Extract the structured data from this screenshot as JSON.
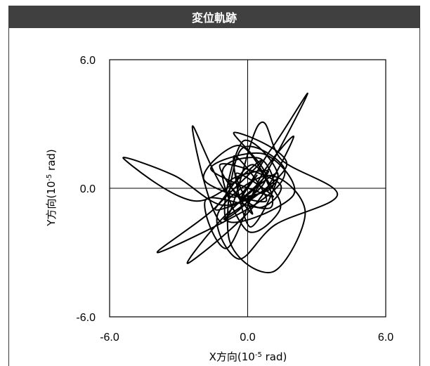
{
  "title": "変位軌跡",
  "chart_data": {
    "type": "line",
    "title": "変位軌跡",
    "xlabel": {
      "main": "X方向(10",
      "sup": "-5",
      "rest": " rad)"
    },
    "ylabel": {
      "main": "Y方向(10",
      "sup": "-5",
      "rest": " rad)"
    },
    "xlim": [
      -6.0,
      6.0
    ],
    "ylim": [
      -6.0,
      6.0
    ],
    "x_ticks": [
      "-6.0",
      "0.0",
      "6.0"
    ],
    "y_ticks": [
      "6.0",
      "0.0",
      "-6.0"
    ],
    "grid": false,
    "zero_lines": true,
    "line_color": "#000000",
    "series": [
      {
        "x": [
          0.0,
          0.4,
          -0.3,
          0.9,
          -0.8,
          0.5,
          1.4,
          -1.2,
          0.2,
          -0.5,
          1.1,
          -1.6,
          0.7,
          2.0,
          -0.9,
          -0.2,
          1.3,
          -1.4,
          0.6,
          -2.2,
          -5.4,
          -3.2,
          -1.0,
          0.8,
          -0.6,
          1.7,
          -1.0,
          0.3,
          2.6,
          1.0,
          -0.7,
          -2.4,
          -1.1,
          0.5,
          1.5,
          3.9,
          1.2,
          -0.4,
          -1.3,
          0.9,
          2.5,
          1.1,
          -0.8,
          -0.3,
          1.6,
          0.4,
          -3.9,
          -1.5,
          0.2,
          1.0,
          -1.8,
          -0.9,
          0.6,
          2.0,
          0.3,
          -2.6,
          -1.0,
          1.3,
          0.1,
          -0.6,
          0.8,
          -1.9,
          -0.4,
          0.9,
          1.4,
          0.0,
          -1.1,
          0.5,
          1.1,
          -0.2,
          0.0
        ],
        "y": [
          0.0,
          0.6,
          -0.5,
          0.8,
          0.3,
          -0.9,
          0.2,
          1.1,
          -1.2,
          0.7,
          -0.4,
          0.9,
          1.6,
          -0.3,
          -1.5,
          2.2,
          0.4,
          -1.0,
          1.3,
          -0.6,
          1.4,
          0.6,
          -0.8,
          0.5,
          2.6,
          1.1,
          -1.4,
          -0.2,
          4.4,
          1.8,
          -0.4,
          2.9,
          -1.6,
          3.0,
          1.3,
          -0.3,
          -1.7,
          -3.3,
          -1.2,
          0.6,
          -1.1,
          -3.9,
          -2.4,
          1.8,
          0.9,
          -0.7,
          -3.0,
          -1.0,
          1.1,
          -0.9,
          -0.5,
          -2.8,
          0.6,
          2.4,
          -0.8,
          -3.5,
          -1.3,
          0.7,
          -1.8,
          1.5,
          -0.6,
          0.4,
          2.0,
          0.3,
          -1.0,
          -2.0,
          0.8,
          1.4,
          0.1,
          -0.4,
          0.0
        ]
      }
    ]
  }
}
